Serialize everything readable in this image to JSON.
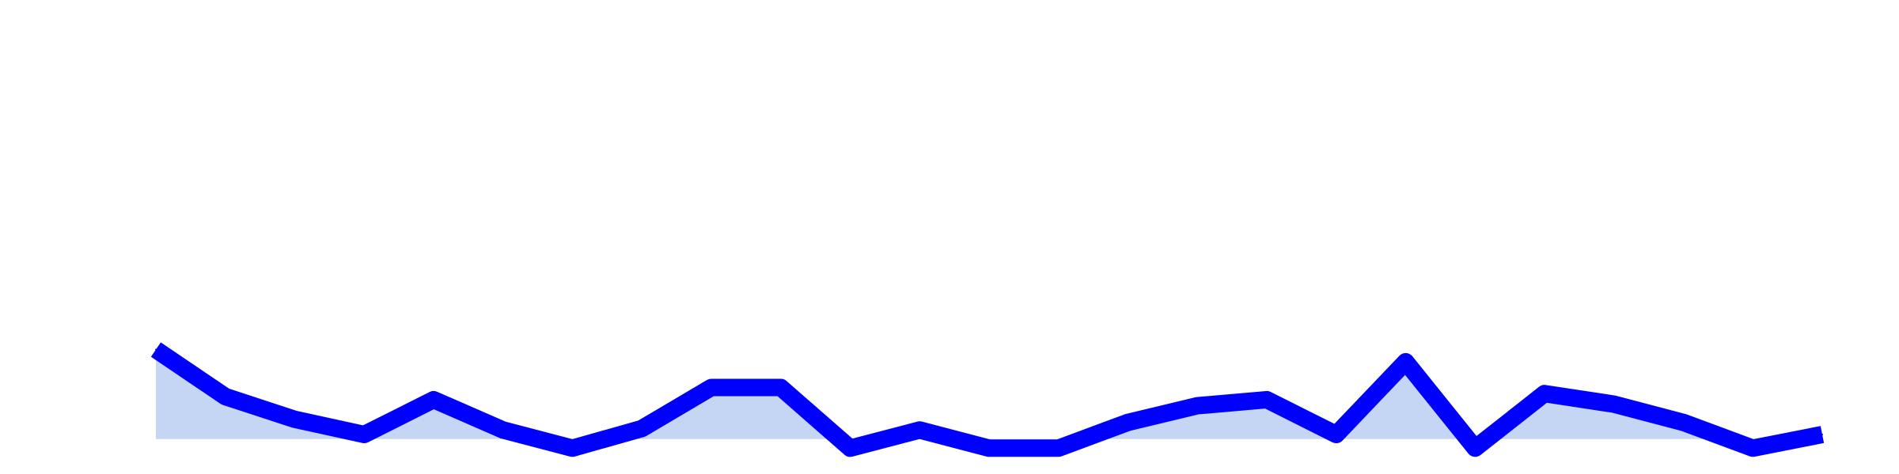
{
  "chart_data": {
    "type": "area",
    "title": "",
    "xlabel": "",
    "ylabel": "",
    "x": [
      1,
      2,
      3,
      4,
      5,
      6,
      7,
      8,
      9,
      10,
      11,
      12,
      13,
      14,
      15,
      16,
      17,
      18,
      19,
      20,
      21,
      22,
      23,
      24,
      25
    ],
    "series": [
      {
        "values": [
          5.9,
          2.8,
          1.3,
          0.3,
          2.6,
          0.6,
          -0.6,
          0.7,
          3.4,
          3.4,
          -0.6,
          0.6,
          -0.6,
          -0.6,
          1.1,
          2.2,
          2.6,
          0.3,
          5.1,
          -0.6,
          3.0,
          2.3,
          1.1,
          -0.6,
          0.3
        ],
        "line_color": "#0000ff",
        "fill_color": "#c5d6f5"
      }
    ],
    "ylim": [
      -1,
      25
    ],
    "fill_baseline": 0,
    "grid": false,
    "axes_visible": false,
    "legend": "none"
  }
}
